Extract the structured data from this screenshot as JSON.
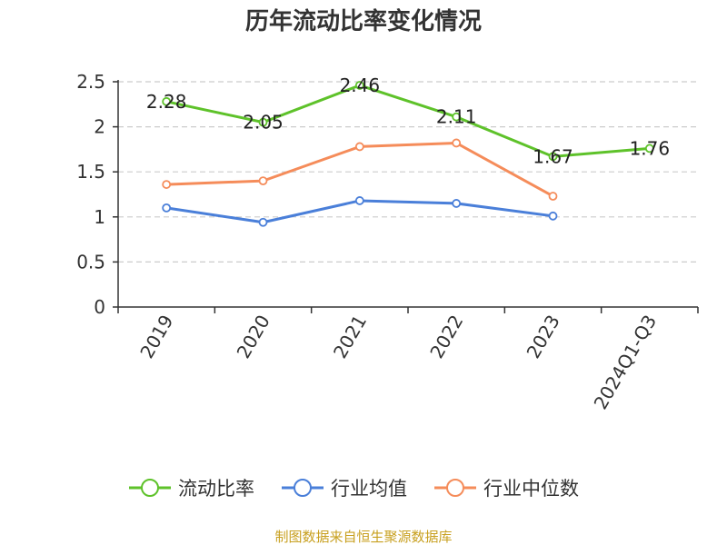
{
  "chart_data": {
    "type": "line",
    "title": "历年流动比率变化情况",
    "categories": [
      "2019",
      "2020",
      "2021",
      "2022",
      "2023",
      "2024Q1-Q3"
    ],
    "series": [
      {
        "name": "流动比率",
        "color": "#5ec22a",
        "values": [
          2.28,
          2.05,
          2.46,
          2.11,
          1.67,
          1.76
        ],
        "show_labels": true
      },
      {
        "name": "行业均值",
        "color": "#4a7fd9",
        "values": [
          1.1,
          0.94,
          1.18,
          1.15,
          1.01,
          null
        ],
        "show_labels": false
      },
      {
        "name": "行业中位数",
        "color": "#f58c5a",
        "values": [
          1.36,
          1.4,
          1.78,
          1.82,
          1.23,
          null
        ],
        "show_labels": false
      }
    ],
    "yticks": [
      "0",
      "0.5",
      "1",
      "1.5",
      "2",
      "2.5"
    ],
    "ylim": [
      0,
      2.5
    ],
    "grid": true,
    "legend_position": "bottom"
  },
  "source_text": "制图数据来自恒生聚源数据库",
  "colors": {
    "source": "#c8a020",
    "grid": "#cccccc",
    "axis": "#333333"
  }
}
